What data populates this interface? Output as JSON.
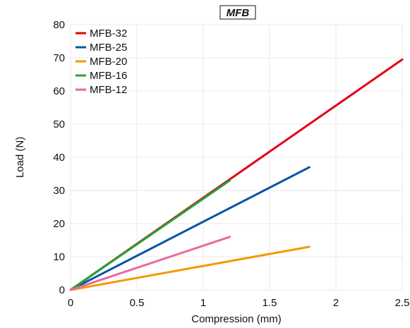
{
  "chart_data": {
    "type": "line",
    "title": "MFB",
    "xlabel": "Compression (mm)",
    "ylabel": "Load (N)",
    "xlim": [
      0,
      2.5
    ],
    "ylim": [
      0,
      80
    ],
    "xticks": [
      0,
      0.5,
      1,
      1.5,
      2,
      2.5
    ],
    "xtick_labels": [
      "0",
      "0.5",
      "1",
      "1.5",
      "2",
      "2.5"
    ],
    "yticks": [
      0,
      10,
      20,
      30,
      40,
      50,
      60,
      70,
      80
    ],
    "ytick_labels": [
      "0",
      "10",
      "20",
      "30",
      "40",
      "50",
      "60",
      "70",
      "80"
    ],
    "grid": true,
    "legend_position": "top-left",
    "series": [
      {
        "name": "MFB-32",
        "color": "#e60012",
        "x": [
          0,
          2.5
        ],
        "y": [
          0,
          69.5
        ]
      },
      {
        "name": "MFB-25",
        "color": "#0055a5",
        "x": [
          0,
          1.8
        ],
        "y": [
          0,
          37
        ]
      },
      {
        "name": "MFB-20",
        "color": "#f39800",
        "x": [
          0,
          1.8
        ],
        "y": [
          0,
          13
        ]
      },
      {
        "name": "MFB-16",
        "color": "#22a33a",
        "x": [
          0,
          1.2
        ],
        "y": [
          0,
          33
        ]
      },
      {
        "name": "MFB-12",
        "color": "#ea68a2",
        "x": [
          0,
          1.2
        ],
        "y": [
          0,
          16
        ]
      }
    ]
  }
}
